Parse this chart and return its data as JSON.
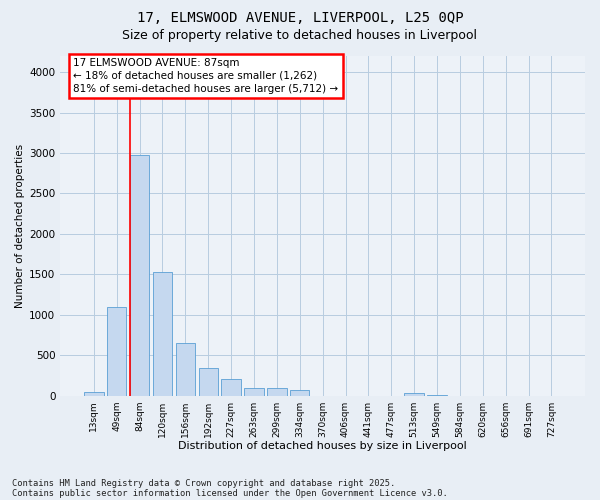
{
  "title1": "17, ELMSWOOD AVENUE, LIVERPOOL, L25 0QP",
  "title2": "Size of property relative to detached houses in Liverpool",
  "xlabel": "Distribution of detached houses by size in Liverpool",
  "ylabel": "Number of detached properties",
  "categories": [
    "13sqm",
    "49sqm",
    "84sqm",
    "120sqm",
    "156sqm",
    "192sqm",
    "227sqm",
    "263sqm",
    "299sqm",
    "334sqm",
    "370sqm",
    "406sqm",
    "441sqm",
    "477sqm",
    "513sqm",
    "549sqm",
    "584sqm",
    "620sqm",
    "656sqm",
    "691sqm",
    "727sqm"
  ],
  "values": [
    50,
    1100,
    2970,
    1530,
    650,
    340,
    200,
    100,
    95,
    70,
    0,
    0,
    0,
    0,
    30,
    10,
    0,
    0,
    0,
    0,
    0
  ],
  "bar_color": "#c5d8ef",
  "bar_edge_color": "#5a9fd4",
  "vline_color": "red",
  "vline_pos": 1.575,
  "annotation_text": "17 ELMSWOOD AVENUE: 87sqm\n← 18% of detached houses are smaller (1,262)\n81% of semi-detached houses are larger (5,712) →",
  "annotation_box_edge_color": "red",
  "annotation_bg_color": "white",
  "annotation_text_color": "black",
  "ylim": [
    0,
    4200
  ],
  "yticks": [
    0,
    500,
    1000,
    1500,
    2000,
    2500,
    3000,
    3500,
    4000
  ],
  "footer1": "Contains HM Land Registry data © Crown copyright and database right 2025.",
  "footer2": "Contains public sector information licensed under the Open Government Licence v3.0.",
  "bg_color": "#e8eef5",
  "plot_bg_color": "#edf2f8",
  "grid_color": "#b8cce0"
}
